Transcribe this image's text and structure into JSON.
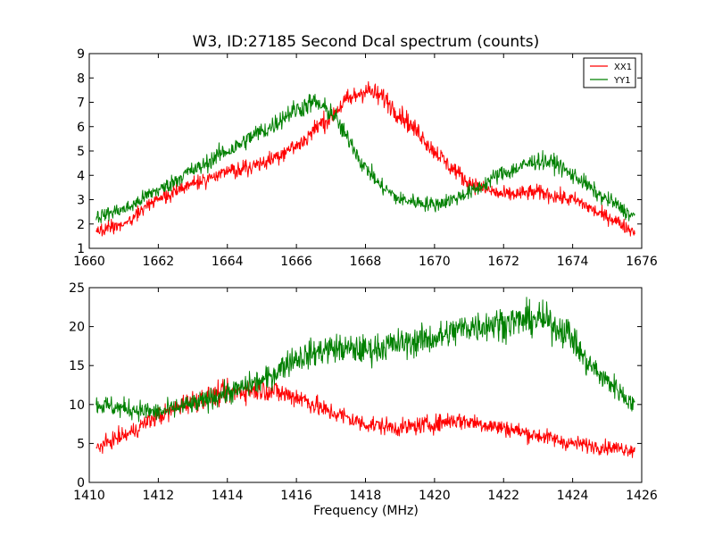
{
  "chart_data": [
    {
      "type": "line",
      "title": "W3, ID:27185 Second Dcal spectrum (counts)",
      "xlabel": "",
      "ylabel": "",
      "xlim": [
        1660,
        1676
      ],
      "ylim": [
        1,
        9
      ],
      "xticks": [
        1660,
        1662,
        1664,
        1666,
        1668,
        1670,
        1672,
        1674,
        1676
      ],
      "yticks": [
        1,
        2,
        3,
        4,
        5,
        6,
        7,
        8,
        9
      ],
      "grid": false,
      "legend": "top-right",
      "noise": 0.35,
      "series": [
        {
          "name": "XX1",
          "color": "#ff0000",
          "x": [
            1660.2,
            1661,
            1662,
            1663,
            1664,
            1665,
            1666,
            1666.8,
            1667.5,
            1668,
            1668.5,
            1669,
            1669.5,
            1670,
            1670.5,
            1671,
            1671.5,
            1672,
            1673,
            1674,
            1675,
            1675.8
          ],
          "y": [
            1.7,
            2.0,
            3.0,
            3.7,
            4.1,
            4.5,
            5.2,
            6.2,
            7.1,
            7.5,
            7.2,
            6.5,
            5.8,
            5.0,
            4.3,
            3.7,
            3.4,
            3.2,
            3.3,
            3.0,
            2.3,
            1.7
          ]
        },
        {
          "name": "YY1",
          "color": "#008000",
          "x": [
            1660.2,
            1661,
            1662,
            1663,
            1664,
            1665,
            1666,
            1666.5,
            1667,
            1667.5,
            1668,
            1668.5,
            1669,
            1670,
            1670.5,
            1671,
            1672,
            1673,
            1673.5,
            1674,
            1675,
            1675.8
          ],
          "y": [
            2.3,
            2.6,
            3.4,
            4.2,
            5.0,
            5.8,
            6.7,
            7.0,
            6.6,
            5.5,
            4.3,
            3.5,
            3.0,
            2.8,
            3.0,
            3.3,
            4.1,
            4.6,
            4.5,
            4.0,
            3.0,
            2.3
          ]
        }
      ]
    },
    {
      "type": "line",
      "title": "",
      "xlabel": "Frequency (MHz)",
      "ylabel": "",
      "xlim": [
        1410,
        1426
      ],
      "ylim": [
        0,
        25
      ],
      "xticks": [
        1410,
        1412,
        1414,
        1416,
        1418,
        1420,
        1422,
        1424,
        1426
      ],
      "yticks": [
        0,
        5,
        10,
        15,
        20,
        25
      ],
      "grid": false,
      "legend": "none",
      "noise": 0.9,
      "series": [
        {
          "name": "",
          "color": "#ff0000",
          "x": [
            1410.2,
            1411,
            1412,
            1413,
            1414,
            1415,
            1416,
            1417,
            1418,
            1419,
            1420,
            1420.5,
            1421,
            1422,
            1423,
            1424,
            1425,
            1425.8
          ],
          "y": [
            4.5,
            6.0,
            8.5,
            10.5,
            11.5,
            12.0,
            11.0,
            9.0,
            7.5,
            7.0,
            7.5,
            8.0,
            7.8,
            7.0,
            6.0,
            5.0,
            4.5,
            4.2
          ]
        },
        {
          "name": "",
          "color": "#008000",
          "x": [
            1410.2,
            1411,
            1412,
            1413,
            1414,
            1415,
            1416,
            1417,
            1418,
            1419,
            1420,
            1421,
            1422,
            1423,
            1423.8,
            1424.5,
            1425,
            1425.8
          ],
          "y": [
            10.0,
            9.5,
            9.0,
            10.0,
            11.5,
            13.0,
            16.0,
            17.2,
            17.0,
            17.8,
            18.5,
            20.0,
            20.5,
            21.0,
            19.5,
            15.0,
            13.0,
            10.0
          ]
        }
      ]
    }
  ]
}
